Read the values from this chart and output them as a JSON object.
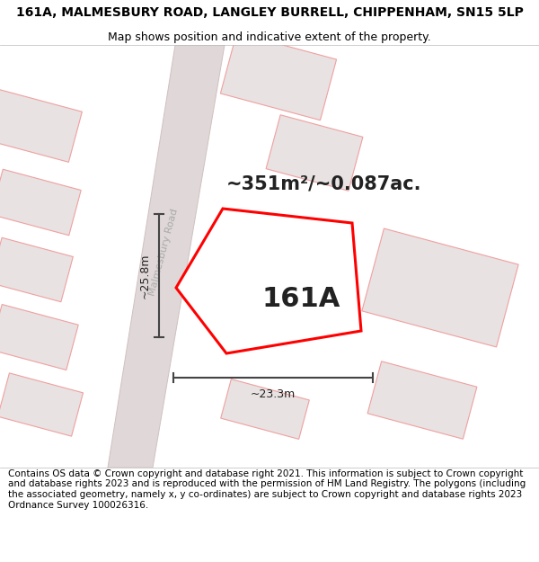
{
  "title_line1": "161A, MALMESBURY ROAD, LANGLEY BURRELL, CHIPPENHAM, SN15 5LP",
  "title_line2": "Map shows position and indicative extent of the property.",
  "area_label": "~351m²/~0.087ac.",
  "plot_label": "161A",
  "dim_width": "~23.3m",
  "dim_height": "~25.8m",
  "road_label": "Malmesbury Road",
  "footer": "Contains OS data © Crown copyright and database right 2021. This information is subject to Crown copyright and database rights 2023 and is reproduced with the permission of HM Land Registry. The polygons (including the associated geometry, namely x, y co-ordinates) are subject to Crown copyright and database rights 2023 Ordnance Survey 100026316.",
  "bg_color": "#ffffff",
  "map_bg": "#ffffff",
  "plot_fill": "#ffffff",
  "plot_edge": "#ff0000",
  "neighbor_fill": "#e8e2e2",
  "neighbor_edge": "#f0a0a0",
  "road_fill": "#e0d8d8",
  "road_stroke": "#d0c0c0",
  "dim_color": "#444444",
  "road_label_color": "#aaaaaa",
  "text_color": "#222222",
  "title_fontsize": 10,
  "subtitle_fontsize": 9,
  "area_fontsize": 15,
  "plot_label_fontsize": 22,
  "dim_fontsize": 9,
  "road_fontsize": 8,
  "footer_fontsize": 7.5
}
